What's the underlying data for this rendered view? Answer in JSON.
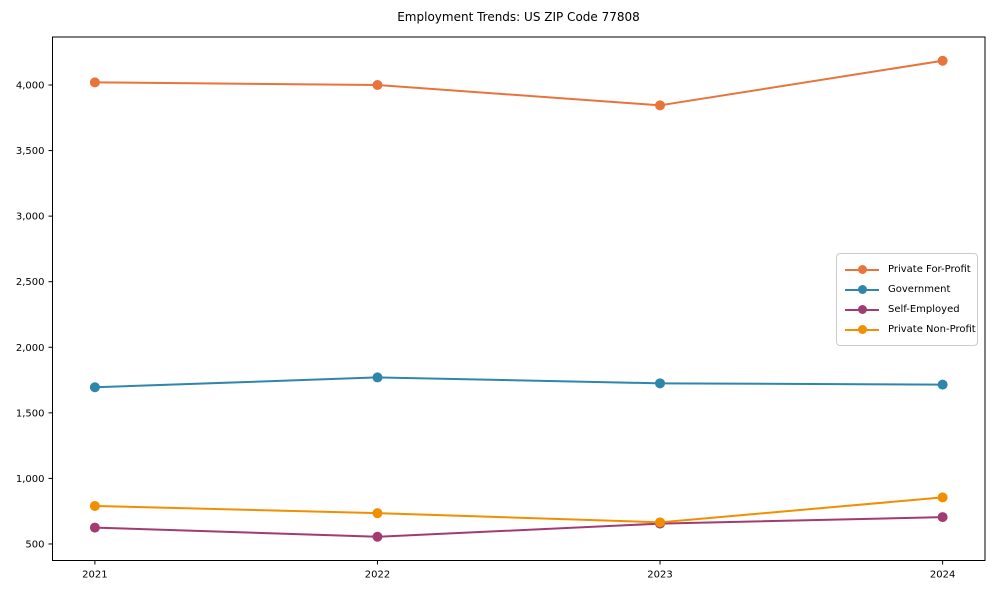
{
  "title": "Employment Trends: US ZIP Code 77808",
  "chart_data": {
    "type": "line",
    "title": "Employment Trends: US ZIP Code 77808",
    "xlabel": "",
    "ylabel": "",
    "x": [
      2021,
      2022,
      2023,
      2024
    ],
    "x_tick_labels": [
      "2021",
      "2022",
      "2023",
      "2024"
    ],
    "yticks": [
      500,
      1000,
      1500,
      2000,
      2500,
      3000,
      3500,
      4000
    ],
    "ytick_labels": [
      "500",
      "1,000",
      "1,500",
      "2,000",
      "2,500",
      "3,000",
      "3,500",
      "4,000"
    ],
    "xlim": [
      2020.85,
      2024.15
    ],
    "ylim": [
      374,
      4366
    ],
    "grid": false,
    "legend_position": "center-right",
    "series": [
      {
        "name": "Private For-Profit",
        "color": "#E8743B",
        "values": [
          4020,
          4000,
          3845,
          4185
        ]
      },
      {
        "name": "Government",
        "color": "#2E86AB",
        "values": [
          1695,
          1770,
          1725,
          1715
        ]
      },
      {
        "name": "Self-Employed",
        "color": "#A23B72",
        "values": [
          625,
          555,
          655,
          705
        ]
      },
      {
        "name": "Private Non-Profit",
        "color": "#F18F01",
        "values": [
          790,
          735,
          665,
          855
        ]
      }
    ]
  },
  "colors": {
    "spine": "#000000",
    "tick_text": "#000000",
    "legend_border": "#cccccc"
  }
}
